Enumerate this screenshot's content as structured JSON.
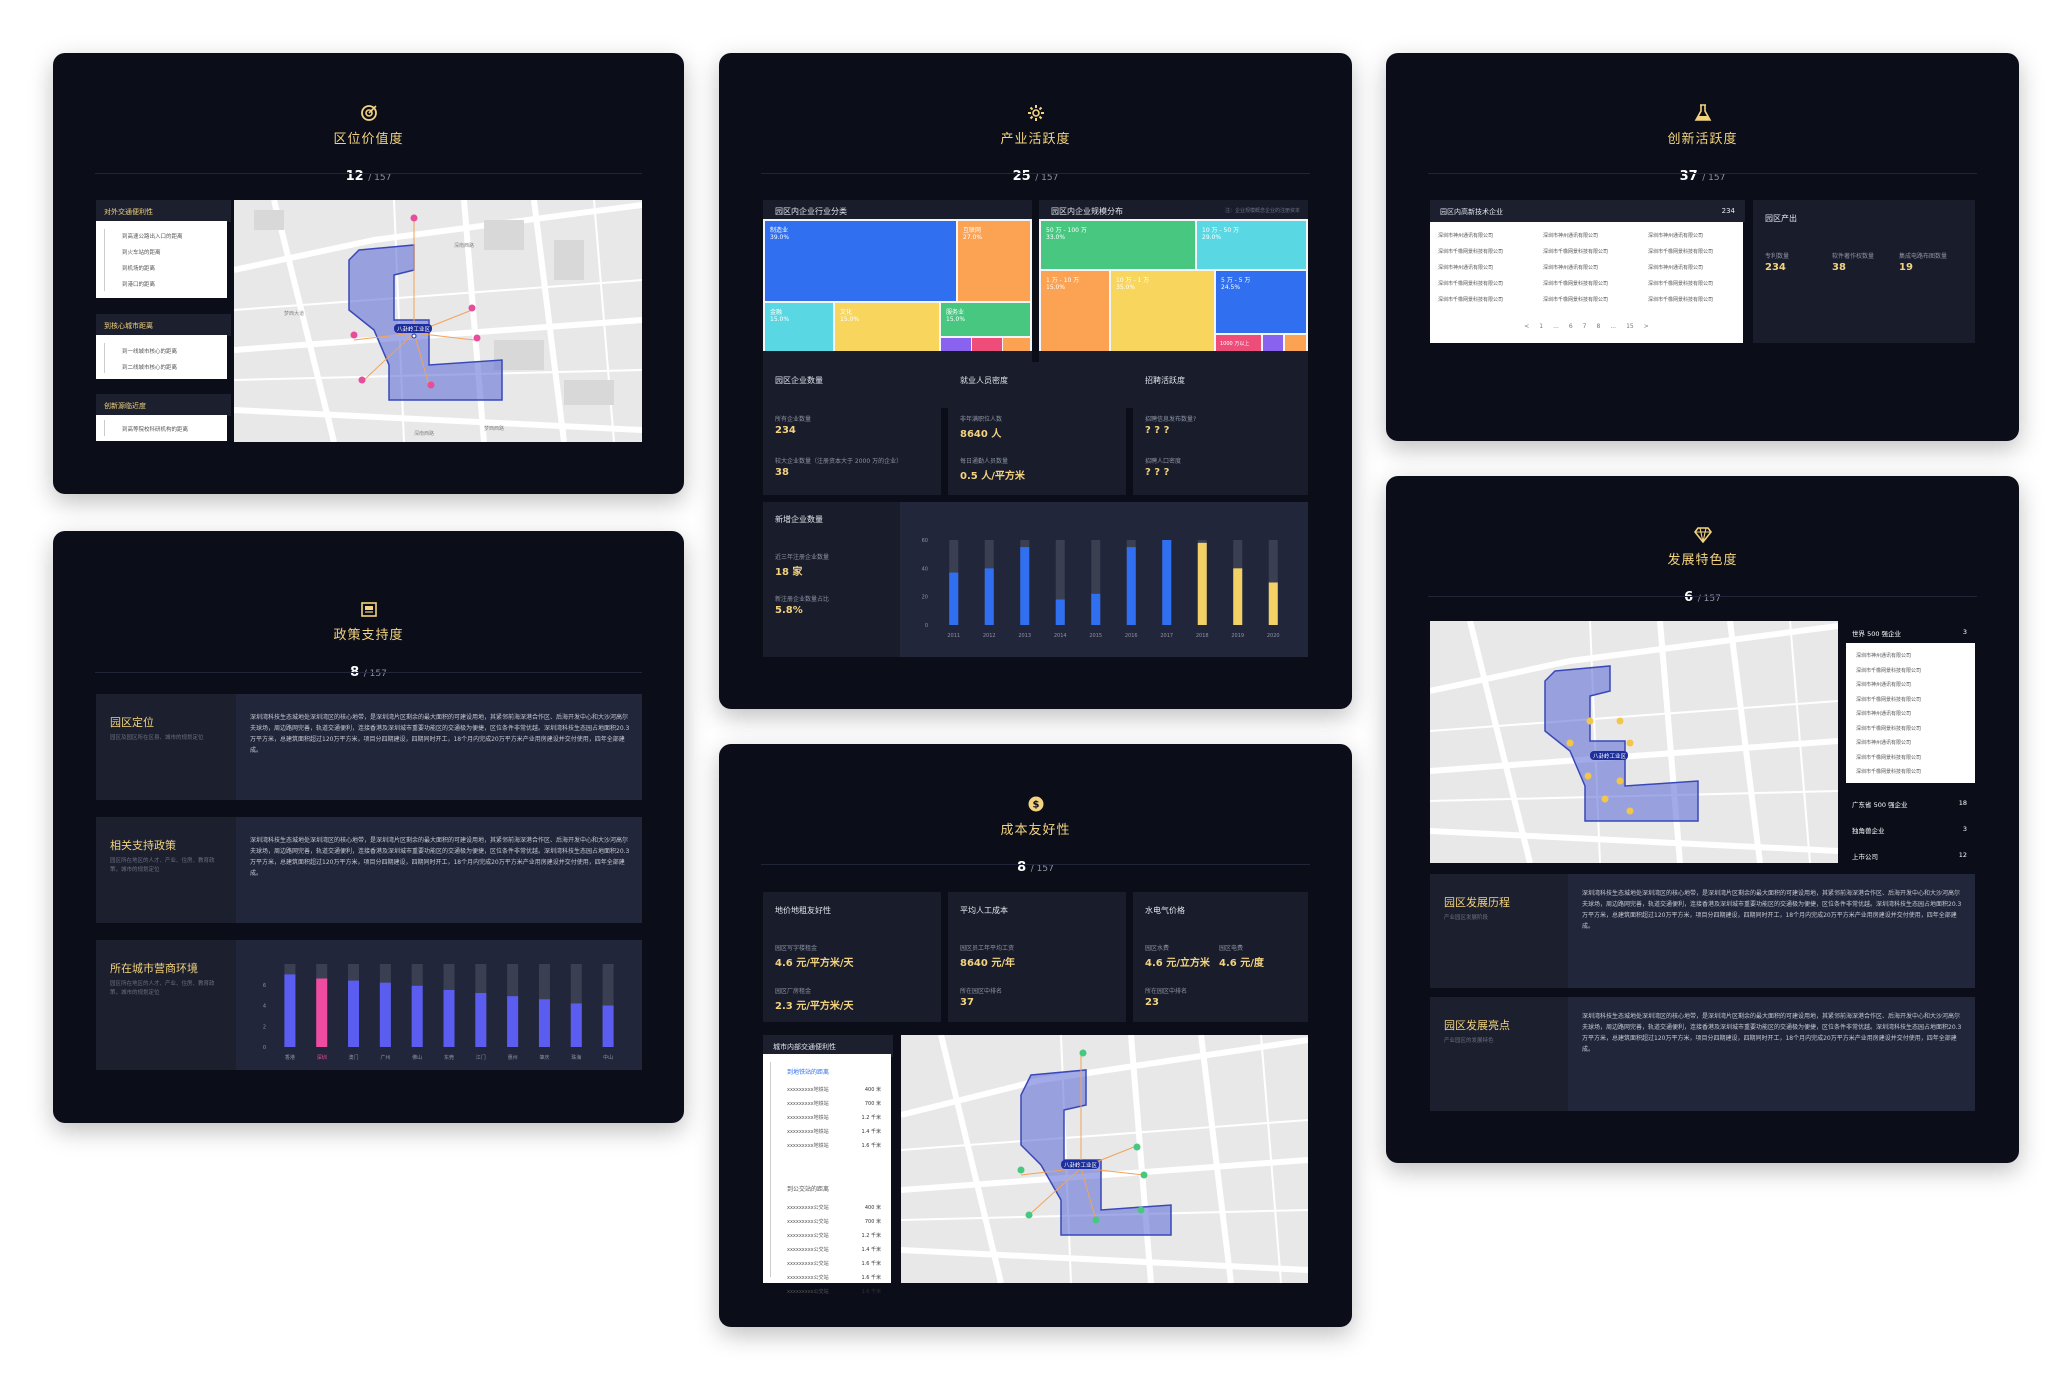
{
  "location": {
    "title": "区位价值度",
    "rank": "12",
    "total": "/ 157",
    "groups": [
      {
        "title": "对外交通便利性",
        "items": [
          "到高速公路出入口的距离",
          "到火车站的距离",
          "到机场的距离",
          "到港口的距离"
        ]
      },
      {
        "title": "到核心城市距离",
        "items": [
          "到一线城市核心的距离",
          "到二线城市核心的距离"
        ]
      },
      {
        "title": "创新源临近度",
        "items": [
          "到高等院校科研机构的距离"
        ]
      }
    ],
    "map": {
      "park": "八卦岭工业区",
      "roads": [
        "深南西路",
        "深南西路",
        "梦西大道",
        "梦西西路",
        "深南西路"
      ]
    }
  },
  "policy": {
    "title": "政策支持度",
    "rank": "8",
    "total": "/ 157",
    "sections": [
      {
        "title": "园区定位",
        "sub": "园区及园区所在区县、城市的规划定位",
        "text": "深圳湾科技生态城地处深圳湾区的核心地带，是深圳湾片区剩余的最大面积的可建设用地，其紧邻前海深港合作区、后海开发中心和大沙河高尔夫球场，周边路网完善，轨道交通便利，连接香港及深圳城市重要功能区的交通极为便捷，区位条件非常优越。深圳湾科技生态园占地面积20.3万平方米，总建筑面积超过120万平方米，项目分四期建设，四期同时开工，18个月内完成20万平方米产业用房建设并交付使用，四年全部建成。"
      },
      {
        "title": "相关支持政策",
        "sub": "园区所在地区的人才、产业、住房、教育政策，城市的规划定位",
        "text": "深圳湾科技生态城地处深圳湾区的核心地带，是深圳湾片区剩余的最大面积的可建设用地，其紧邻前海深港合作区、后海开发中心和大沙河高尔夫球场，周边路网完善，轨道交通便利，连接香港及深圳城市重要功能区的交通极为便捷，区位条件非常优越。深圳湾科技生态园占地面积20.3万平方米，总建筑面积超过120万平方米，项目分四期建设，四期同时开工，18个月内完成20万平方米产业用房建设并交付使用，四年全部建成。"
      },
      {
        "title": "所在城市营商环境",
        "sub": "园区所在地区的人才、产业、住房、教育政策，城市的规划定位"
      }
    ]
  },
  "industry": {
    "title": "产业活跃度",
    "rank": "25",
    "total": "/ 157",
    "treemap1": {
      "title": "园区内企业行业分类",
      "cells": [
        {
          "name": "制造业",
          "pct": "39.0%"
        },
        {
          "name": "互联网",
          "pct": "27.0%"
        },
        {
          "name": "金融",
          "pct": "15.0%"
        },
        {
          "name": "文化",
          "pct": "15.0%"
        },
        {
          "name": "服务业",
          "pct": "15.0%"
        }
      ]
    },
    "treemap2": {
      "title": "园区内企业规模分布",
      "note": "注：企业规模概念企业的注册资本",
      "cells": [
        {
          "name": "50 万 - 100 万",
          "pct": "33.0%"
        },
        {
          "name": "10 万 - 50 万",
          "pct": "29.0%"
        },
        {
          "name": "1 万 - 10 万",
          "pct": "15.0%"
        },
        {
          "name": "10 万 - 1 万",
          "pct": "35.0%"
        },
        {
          "name": "5 万 - 5 万",
          "pct": "24.5%"
        },
        {
          "name": "1000 万以上",
          "pct": ""
        }
      ]
    },
    "enterprise": {
      "title": "园区企业数量",
      "l1": "所有企业数量",
      "v1": "234",
      "l2": "较大企业数量（注册资本大于 2000 万的企业）",
      "v2": "38"
    },
    "employment": {
      "title": "就业人员密度",
      "l1": "非年满职位人数",
      "v1": "8640 人",
      "l2": "每日通勤人员数量",
      "v2": "0.5 人/平方米"
    },
    "recruit": {
      "title": "招聘活跃度",
      "l1": "招聘信息发布数量?",
      "v1": "? ? ?",
      "l2": "招聘人口密度",
      "v2": "? ? ?"
    },
    "newent": {
      "title": "新增企业数量",
      "l1": "近三年注册企业数量",
      "v1": "18 家",
      "l2": "新注册企业数量占比",
      "v2": "5.8%"
    }
  },
  "cost": {
    "title": "成本友好性",
    "rank": "8",
    "total": "/ 157",
    "land": {
      "title": "地价地租友好性",
      "l1": "园区写字楼租金",
      "v1": "4.6 元/平方米/天",
      "l2": "园区厂房租金",
      "v2": "2.3 元/平方米/天"
    },
    "labor": {
      "title": "平均人工成本",
      "l1": "园区员工年平均工资",
      "v1": "8640 元/年",
      "l2": "所在园区中排名",
      "v2": "37"
    },
    "utility": {
      "title": "水电气价格",
      "l1": "园区水费",
      "v1": "4.6 元/立方米",
      "l1b": "园区电费",
      "v1b": "4.6 元/度",
      "l2": "所在园区中排名",
      "v2": "23"
    },
    "traffic": {
      "title": "城市内部交通便利性",
      "g1": "到地铁站的距离",
      "g2": "到公交站的距离",
      "rows": [
        "xxxxxxxxx地铁站",
        "xxxxxxxxx地铁站",
        "xxxxxxxxx地铁站",
        "xxxxxxxxx地铁站",
        "xxxxxxxxx地铁站"
      ],
      "rows2": [
        "xxxxxxxxx公交站",
        "xxxxxxxxx公交站",
        "xxxxxxxxx公交站",
        "xxxxxxxxx公交站",
        "xxxxxxxxx公交站",
        "xxxxxxxxx公交站",
        "xxxxxxxxx公交站"
      ],
      "d1": [
        "400 米",
        "700 米",
        "1.2 千米",
        "1.4 千米",
        "1.6 千米"
      ],
      "d2": [
        "400 米",
        "700 米",
        "1.2 千米",
        "1.4 千米",
        "1.6 千米",
        "1.6 千米",
        "1.6 千米"
      ]
    },
    "map": {
      "park": "八卦岭工业区"
    }
  },
  "innovation": {
    "title": "创新活跃度",
    "rank": "37",
    "total": "/ 157",
    "hitech": {
      "title": "园区内高新技术企业",
      "count": "234",
      "companies": [
        "深圳市神州通讯有限公司",
        "深圳市神州通讯有限公司",
        "深圳市神州通讯有限公司",
        "深圳市千橡网景科技有限公司",
        "深圳市千橡网景科技有限公司",
        "深圳市千橡网景科技有限公司",
        "深圳市神州通讯有限公司",
        "深圳市神州通讯有限公司",
        "深圳市神州通讯有限公司",
        "深圳市千橡网景科技有限公司",
        "深圳市千橡网景科技有限公司",
        "深圳市千橡网景科技有限公司",
        "深圳市千橡网景科技有限公司",
        "深圳市千橡网景科技有限公司",
        "深圳市千橡网景科技有限公司"
      ],
      "pager": [
        "<",
        "1",
        "...",
        "6",
        "7",
        "8",
        "...",
        "15",
        ">"
      ]
    },
    "output": {
      "title": "园区产出",
      "items": [
        {
          "l": "专利数量",
          "v": "234"
        },
        {
          "l": "软件著作权数量",
          "v": "38"
        },
        {
          "l": "集成电路布图数量",
          "v": "19"
        }
      ]
    }
  },
  "feature": {
    "title": "发展特色度",
    "rank": "6",
    "total": "/ 157",
    "map": {
      "park": "八卦岭工业区"
    },
    "rank_list": [
      {
        "name": "世界 500 强企业",
        "count": "3"
      },
      {
        "name": "广东省 500 强企业",
        "count": "18"
      },
      {
        "name": "独角兽企业",
        "count": "3"
      },
      {
        "name": "上市公司",
        "count": "12"
      }
    ],
    "companies": [
      "深圳市神州通讯有限公司",
      "深圳市千橡网景科技有限公司",
      "深圳市神州通讯有限公司",
      "深圳市千橡网景科技有限公司",
      "深圳市神州通讯有限公司",
      "深圳市千橡网景科技有限公司",
      "深圳市神州通讯有限公司",
      "深圳市千橡网景科技有限公司",
      "深圳市千橡网景科技有限公司"
    ],
    "sections": [
      {
        "title": "园区发展历程",
        "sub": "产业园区发展阶段",
        "text": "深圳湾科技生态城地处深圳湾区的核心地带，是深圳湾片区剩余的最大面积的可建设用地，其紧邻前海深港合作区、后海开发中心和大沙河高尔夫球场，周边路网完善，轨道交通便利，连接香港及深圳城市重要功能区的交通极为便捷，区位条件非常优越。深圳湾科技生态园占地面积20.3万平方米，总建筑面积超过120万平方米，项目分四期建设，四期同时开工，18个月内完成20万平方米产业用房建设并交付使用，四年全部建成。"
      },
      {
        "title": "园区发展亮点",
        "sub": "产业园区的发展特色",
        "text": "深圳湾科技生态城地处深圳湾区的核心地带，是深圳湾片区剩余的最大面积的可建设用地，其紧邻前海深港合作区、后海开发中心和大沙河高尔夫球场，周边路网完善，轨道交通便利，连接香港及深圳城市重要功能区的交通极为便捷，区位条件非常优越。深圳湾科技生态园占地面积20.3万平方米，总建筑面积超过120万平方米，项目分四期建设，四期同时开工，18个月内完成20万平方米产业用房建设并交付使用，四年全部建成。"
      }
    ]
  },
  "chart_data": [
    {
      "type": "bar",
      "x": [
        "2011",
        "2012",
        "2013",
        "2014",
        "2015",
        "2016",
        "2017",
        "2018",
        "2019",
        "2020"
      ],
      "values": [
        37,
        40,
        55,
        18,
        22,
        55,
        60,
        58,
        40,
        30
      ],
      "ylim": [
        0,
        60
      ],
      "yticks": [
        "0",
        "20",
        "40",
        "60"
      ],
      "colors": {
        "normal": "#2f6ff0",
        "highlight": "#f3d166",
        "track": "#3a3f52"
      },
      "highlight": [
        7,
        8,
        9
      ]
    },
    {
      "type": "bar",
      "x": [
        "香港",
        "深圳",
        "澳门",
        "广州",
        "佛山",
        "东莞",
        "江门",
        "惠州",
        "肇庆",
        "珠海",
        "中山"
      ],
      "values": [
        7,
        6.6,
        6.4,
        6.2,
        5.9,
        5.5,
        5.2,
        4.9,
        4.6,
        4.2,
        4.0
      ],
      "ylim": [
        0,
        8
      ],
      "yticks": [
        "0",
        "2",
        "4",
        "6"
      ],
      "colors": {
        "normal": "#5a5df0",
        "highlight": "#ef4ba0",
        "track": "#3a3f52"
      },
      "highlight": [
        1
      ]
    }
  ]
}
